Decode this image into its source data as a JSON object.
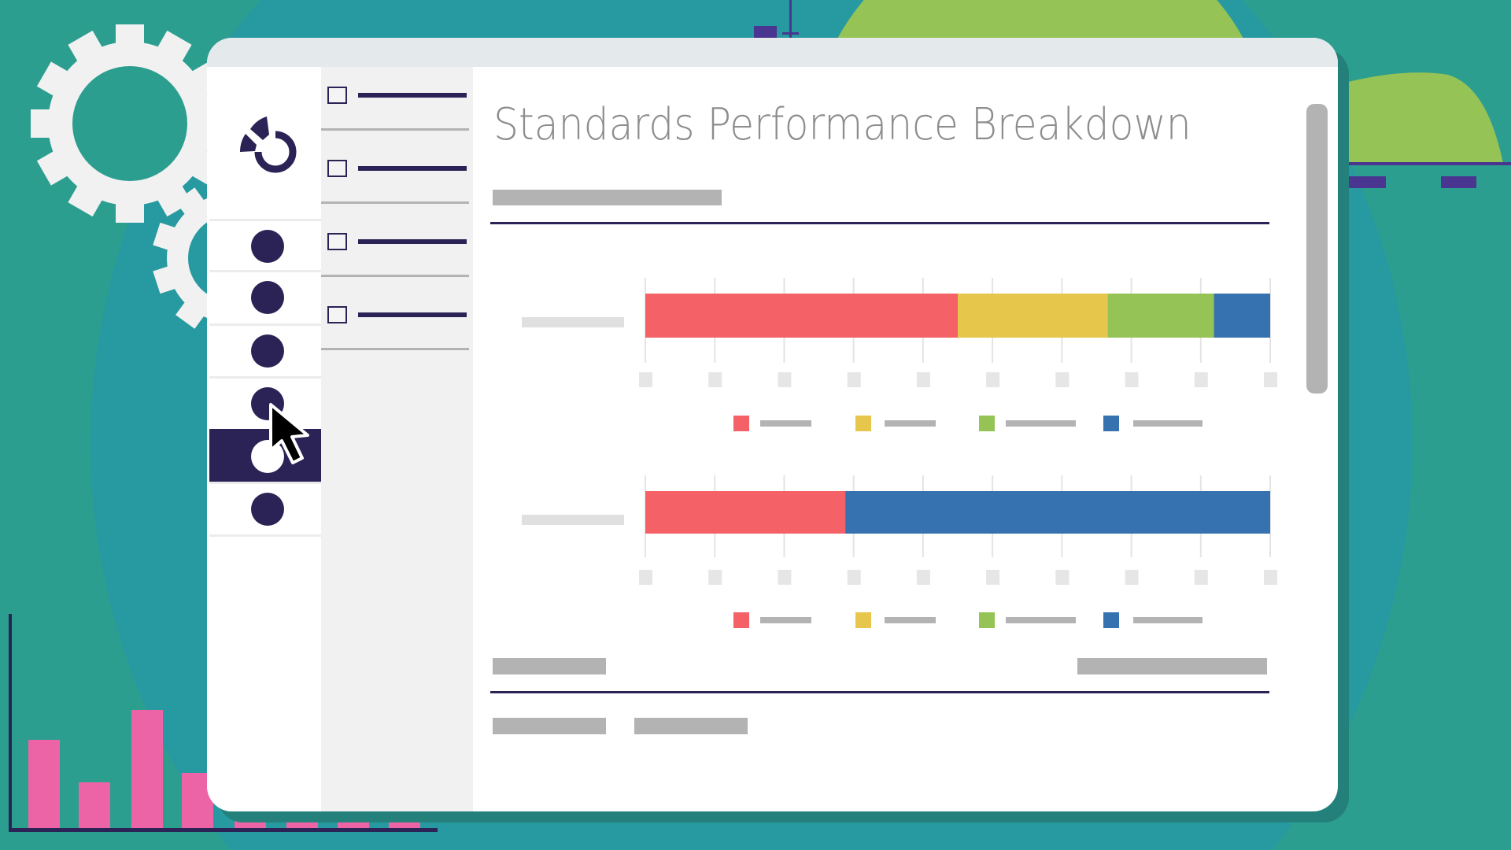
{
  "main": {
    "title": "Standards Performance Breakdown"
  },
  "sidebar": {
    "logo_icon": "donut-chart-logo",
    "nav_items": [
      {
        "icon": "circle",
        "selected": false
      },
      {
        "icon": "circle",
        "selected": false
      },
      {
        "icon": "circle",
        "selected": false
      },
      {
        "icon": "circle",
        "selected": false
      },
      {
        "icon": "circle",
        "selected": true
      },
      {
        "icon": "circle",
        "selected": false
      }
    ]
  },
  "list_panel": {
    "items": [
      {
        "checked": false
      },
      {
        "checked": false
      },
      {
        "checked": false
      },
      {
        "checked": false
      }
    ]
  },
  "colors": {
    "navy": "#2b2255",
    "teal_background": "#2c9e90",
    "red": "#f46267",
    "yellow": "#e7c74b",
    "green": "#96c355",
    "blue": "#3672b0",
    "placeholder_gray": "#b3b3b3"
  },
  "chart_data": [
    {
      "type": "bar",
      "orientation": "horizontal",
      "stacked": true,
      "unit": "percent",
      "xlim": [
        0,
        100
      ],
      "grid": true,
      "legend": "bottom",
      "series": [
        {
          "color": "#f46267",
          "values": [
            50
          ]
        },
        {
          "color": "#e7c74b",
          "values": [
            24
          ]
        },
        {
          "color": "#96c355",
          "values": [
            17
          ]
        },
        {
          "color": "#3672b0",
          "values": [
            9
          ]
        }
      ]
    },
    {
      "type": "bar",
      "orientation": "horizontal",
      "stacked": true,
      "unit": "percent",
      "xlim": [
        0,
        100
      ],
      "grid": true,
      "legend": "bottom",
      "series": [
        {
          "color": "#f46267",
          "values": [
            32
          ]
        },
        {
          "color": "#e7c74b",
          "values": [
            0
          ]
        },
        {
          "color": "#96c355",
          "values": [
            0
          ]
        },
        {
          "color": "#3672b0",
          "values": [
            68
          ]
        }
      ]
    }
  ]
}
